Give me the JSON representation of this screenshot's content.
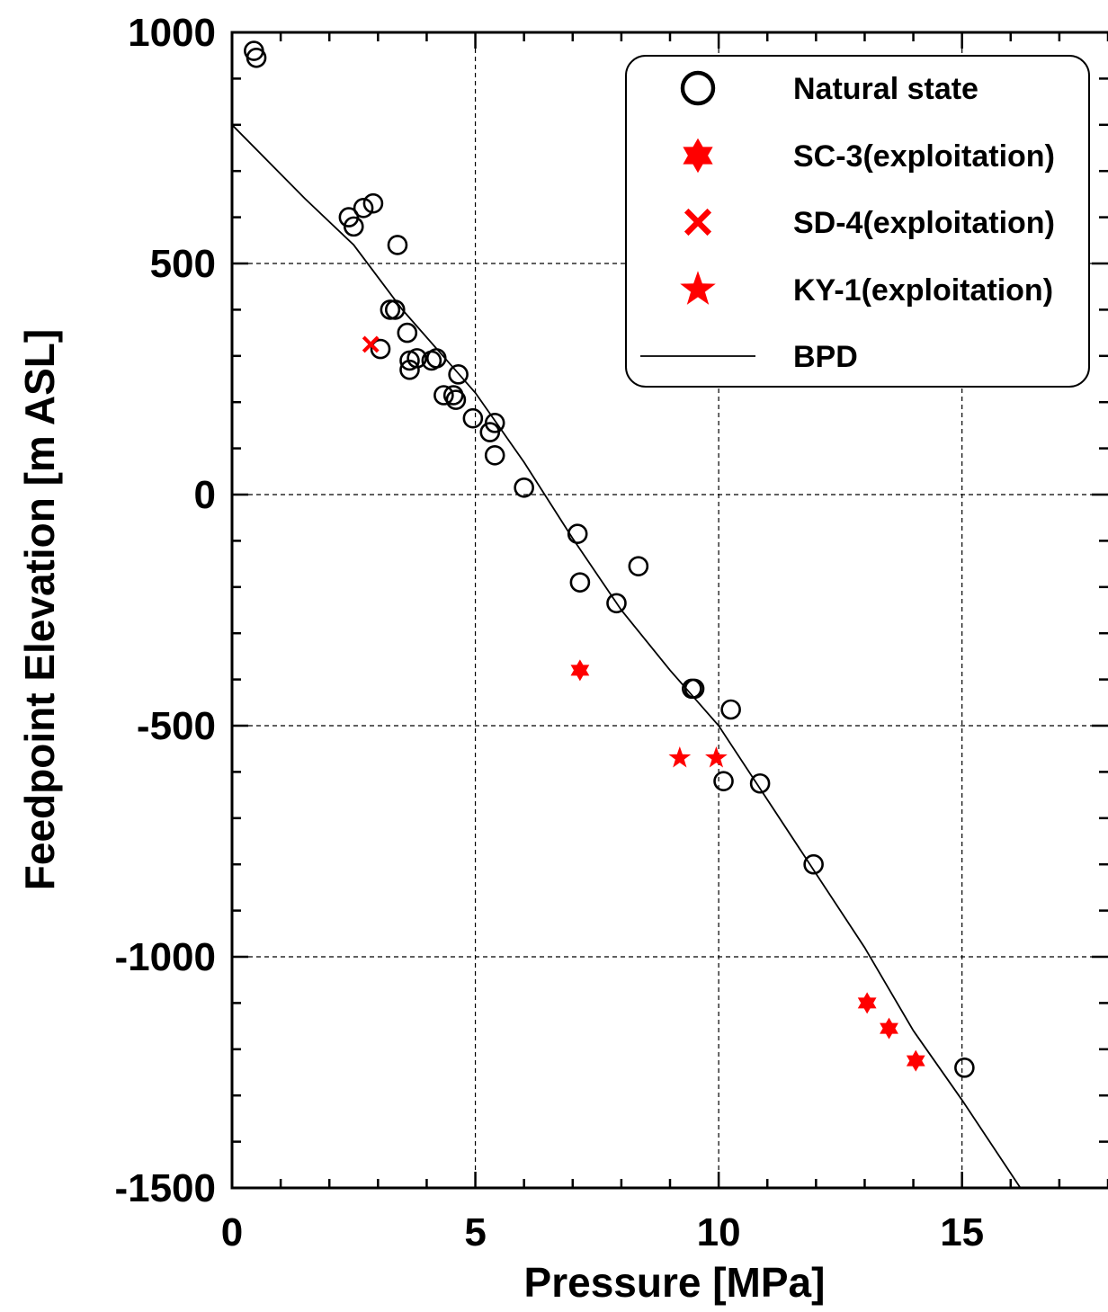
{
  "chart_data": {
    "type": "scatter",
    "xlabel": "Pressure [MPa]",
    "ylabel": "Feedpoint Elevation [m ASL]",
    "xlim": [
      0,
      18
    ],
    "ylim": [
      -1500,
      1000
    ],
    "x_ticks": [
      0,
      5,
      10,
      15
    ],
    "y_ticks": [
      1000,
      500,
      0,
      -500,
      -1000,
      -1500
    ],
    "x_tick_labels": [
      "0",
      "5",
      "10",
      "15"
    ],
    "y_tick_labels": [
      "1000",
      "500",
      "0",
      "-500",
      "-1000",
      "-1500"
    ],
    "grid": true,
    "legend_position": "top-right",
    "series": [
      {
        "name": "Natural state",
        "marker": "circle",
        "color": "#000000",
        "points": [
          [
            0.45,
            960
          ],
          [
            0.5,
            945
          ],
          [
            2.4,
            600
          ],
          [
            2.5,
            580
          ],
          [
            2.7,
            620
          ],
          [
            2.9,
            630
          ],
          [
            3.05,
            315
          ],
          [
            3.25,
            400
          ],
          [
            3.35,
            400
          ],
          [
            3.4,
            540
          ],
          [
            3.6,
            350
          ],
          [
            3.65,
            290
          ],
          [
            3.65,
            270
          ],
          [
            3.8,
            295
          ],
          [
            4.1,
            290
          ],
          [
            4.2,
            295
          ],
          [
            4.35,
            215
          ],
          [
            4.55,
            215
          ],
          [
            4.6,
            205
          ],
          [
            4.65,
            260
          ],
          [
            4.95,
            165
          ],
          [
            5.3,
            135
          ],
          [
            5.4,
            155
          ],
          [
            5.4,
            85
          ],
          [
            6.0,
            15
          ],
          [
            7.1,
            -85
          ],
          [
            7.15,
            -190
          ],
          [
            7.9,
            -235
          ],
          [
            8.35,
            -155
          ],
          [
            9.45,
            -420
          ],
          [
            9.5,
            -420
          ],
          [
            10.1,
            -620
          ],
          [
            10.25,
            -465
          ],
          [
            10.85,
            -625
          ],
          [
            11.95,
            -800
          ],
          [
            15.05,
            -1240
          ]
        ]
      },
      {
        "name": "SC-3(exploitation)",
        "marker": "hexagram",
        "color": "#ff0000",
        "points": [
          [
            7.15,
            -380
          ],
          [
            13.05,
            -1100
          ],
          [
            13.5,
            -1155
          ],
          [
            14.05,
            -1225
          ]
        ]
      },
      {
        "name": "SD-4(exploitation)",
        "marker": "x",
        "color": "#ff0000",
        "points": [
          [
            2.85,
            325
          ]
        ]
      },
      {
        "name": "KY-1(exploitation)",
        "marker": "star",
        "color": "#ff0000",
        "points": [
          [
            9.2,
            -570
          ],
          [
            9.95,
            -570
          ]
        ]
      },
      {
        "name": "BPD",
        "marker": "line",
        "color": "#000000",
        "points": [
          [
            0,
            800
          ],
          [
            1.5,
            640
          ],
          [
            2.5,
            540
          ],
          [
            3.5,
            400
          ],
          [
            5.0,
            220
          ],
          [
            6.0,
            70
          ],
          [
            7.0,
            -95
          ],
          [
            8.0,
            -250
          ],
          [
            9.0,
            -380
          ],
          [
            10.0,
            -500
          ],
          [
            11.0,
            -660
          ],
          [
            12.0,
            -820
          ],
          [
            13.0,
            -980
          ],
          [
            14.0,
            -1160
          ],
          [
            15.0,
            -1310
          ],
          [
            16.2,
            -1500
          ]
        ]
      }
    ]
  }
}
